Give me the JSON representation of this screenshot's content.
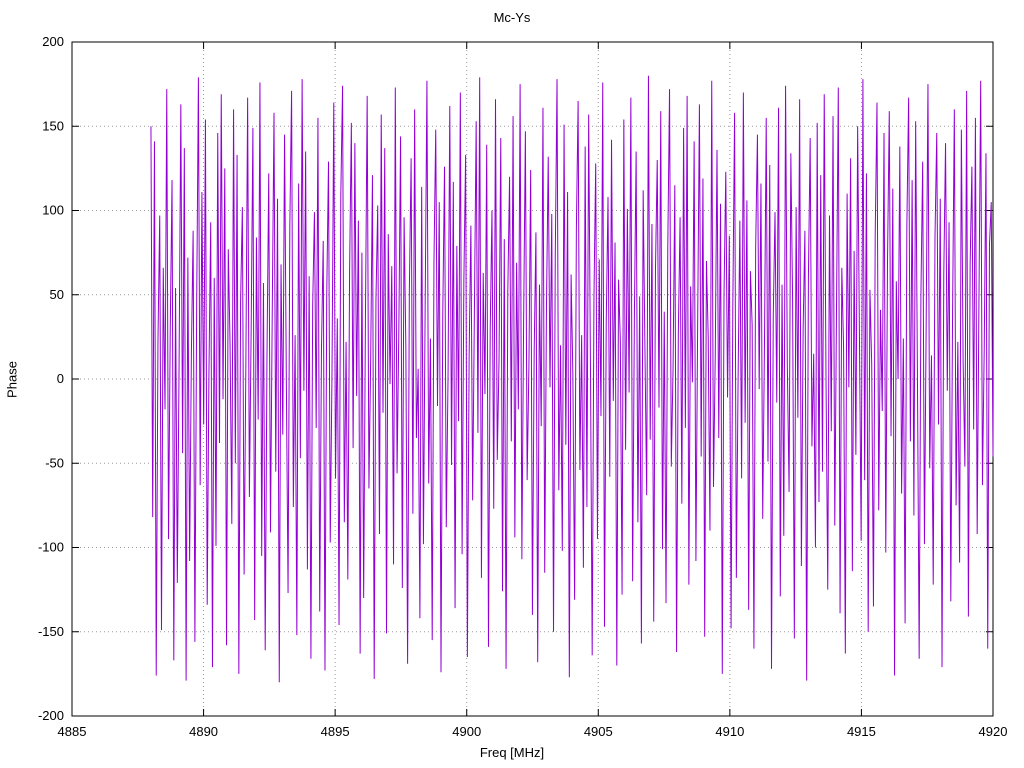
{
  "title": "Mc-Ys",
  "chart_data": {
    "type": "line",
    "title": "Mc-Ys",
    "xlabel": "Freq [MHz]",
    "ylabel": "Phase",
    "xlim": [
      4885,
      4920
    ],
    "ylim": [
      -200,
      200
    ],
    "x_ticks": [
      4885,
      4890,
      4895,
      4900,
      4905,
      4910,
      4915,
      4920
    ],
    "y_ticks": [
      -200,
      -150,
      -100,
      -50,
      0,
      50,
      100,
      150,
      200
    ],
    "grid": true,
    "legend_position": "none",
    "line_color": "#9400d3",
    "grid_color": "#9a9a9a",
    "border_color": "#000000",
    "x_start": 4888.0,
    "x_end": 4920.0,
    "values": [
      150,
      -82,
      141,
      -176,
      23,
      97,
      -149,
      66,
      -18,
      172,
      -95,
      31,
      118,
      -167,
      54,
      -121,
      8,
      163,
      -44,
      137,
      -179,
      72,
      -108,
      15,
      88,
      -156,
      42,
      179,
      -63,
      111,
      -27,
      154,
      -134,
      5,
      93,
      -171,
      60,
      -99,
      146,
      -38,
      169,
      -12,
      125,
      -158,
      77,
      21,
      -86,
      160,
      -50,
      133,
      -175,
      46,
      102,
      -116,
      9,
      167,
      -70,
      29,
      149,
      -143,
      84,
      -24,
      176,
      -105,
      57,
      -161,
      13,
      122,
      -91,
      39,
      158,
      -55,
      107,
      -180,
      68,
      -33,
      145,
      2,
      -127,
      90,
      171,
      -76,
      26,
      -152,
      116,
      -47,
      178,
      -7,
      135,
      -113,
      61,
      -166,
      43,
      99,
      -29,
      155,
      -138,
      17,
      82,
      -173,
      50,
      129,
      -97,
      4,
      164,
      -59,
      36,
      -146,
      109,
      174,
      -85,
      22,
      -119,
      64,
      152,
      -41,
      140,
      -10,
      94,
      -163,
      75,
      -130,
      34,
      168,
      -65,
      12,
      121,
      -178,
      47,
      103,
      -92,
      157,
      -20,
      137,
      -151,
      86,
      -3,
      67,
      -110,
      173,
      -56,
      28,
      144,
      -124,
      96,
      19,
      -169,
      53,
      131,
      -80,
      160,
      -35,
      6,
      -142,
      114,
      -98,
      45,
      177,
      -62,
      24,
      -155,
      70,
      148,
      -16,
      105,
      -174,
      38,
      126,
      -88,
      1,
      162,
      -51,
      117,
      -136,
      79,
      -25,
      170,
      -104,
      58,
      133,
      -165,
      14,
      91,
      -72,
      41,
      153,
      -32,
      179,
      -118,
      63,
      -9,
      139,
      -159,
      30,
      100,
      -77,
      166,
      -48,
      11,
      143,
      -126,
      83,
      -172,
      52,
      120,
      -37,
      156,
      -94,
      69,
      -18,
      175,
      -107,
      35,
      147,
      -60,
      7,
      124,
      -140,
      16,
      87,
      -168,
      56,
      -28,
      161,
      -115,
      44,
      132,
      -5,
      98,
      -150,
      73,
      178,
      -66,
      20,
      -102,
      151,
      -39,
      111,
      -177,
      62,
      3,
      -131,
      89,
      165,
      -54,
      26,
      -112,
      138,
      -76,
      157,
      10,
      -164,
      48,
      128,
      -95,
      71,
      -22,
      176,
      -147,
      34,
      108,
      -58,
      142,
      -13,
      81,
      -170,
      59,
      23,
      -128,
      154,
      -42,
      101,
      -8,
      167,
      -120,
      37,
      135,
      -85,
      49,
      -157,
      112,
      18,
      -69,
      180,
      -36,
      92,
      -144,
      65,
      130,
      -17,
      159,
      -101,
      40,
      -133,
      78,
      172,
      -52,
      6,
      115,
      -162,
      27,
      96,
      -74,
      149,
      -29,
      168,
      -122,
      55,
      -2,
      141,
      -108,
      33,
      163,
      -46,
      119,
      -153,
      70,
      25,
      -90,
      177,
      -64,
      13,
      136,
      -35,
      104,
      -175,
      51,
      123,
      -11,
      85,
      -148,
      43,
      158,
      -118,
      0,
      94,
      -59,
      170,
      -26,
      106,
      -137,
      64,
      32,
      -160,
      79,
      145,
      -6,
      116,
      -83,
      21,
      155,
      -49,
      127,
      -172,
      38,
      99,
      -14,
      161,
      -129,
      56,
      -93,
      174,
      8,
      -67,
      134,
      47,
      -154,
      102,
      -23,
      166,
      -111,
      30,
      88,
      -179,
      61,
      143,
      -40,
      15,
      -100,
      152,
      -73,
      121,
      -55,
      169,
      2,
      -125,
      97,
      -31,
      156,
      -87,
      44,
      173,
      -139,
      66,
      19,
      -163,
      110,
      -5,
      131,
      -114,
      76,
      -45,
      150,
      28,
      -96,
      178,
      -60,
      122,
      -150,
      53,
      9,
      -135,
      86,
      164,
      -78,
      41,
      -19,
      146,
      -103,
      71,
      159,
      -34,
      113,
      -176,
      58,
      0,
      138,
      -68,
      24,
      -145,
      91,
      167,
      -37,
      118,
      -81,
      153,
      4,
      -166,
      50,
      129,
      -98,
      35,
      175,
      -53,
      14,
      -122,
      84,
      146,
      -27,
      107,
      -171,
      62,
      140,
      -7,
      93,
      -132,
      39,
      160,
      -75,
      22,
      -109,
      148,
      11,
      -52,
      171,
      -141,
      68,
      126,
      -30,
      155,
      -92,
      46,
      177,
      -63,
      17,
      134,
      -160,
      80,
      105,
      -46
    ]
  }
}
